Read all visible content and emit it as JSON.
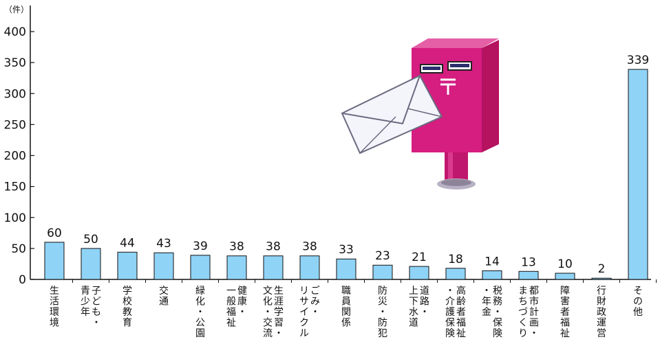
{
  "chart_data": {
    "type": "bar",
    "unit": "（件）",
    "ylim": [
      0,
      400
    ],
    "yticks": [
      0,
      50,
      100,
      150,
      200,
      250,
      300,
      350,
      400
    ],
    "grid": false,
    "bar_color": "#8fd3f7",
    "categories": [
      [
        "生活環境"
      ],
      [
        "子ども・",
        "青少年"
      ],
      [
        "学校教育"
      ],
      [
        "交通"
      ],
      [
        "緑化・公園"
      ],
      [
        "健康・",
        "一般福祉"
      ],
      [
        "生涯学習・",
        "文化・交流"
      ],
      [
        "ごみ・",
        "リサイクル"
      ],
      [
        "職員関係"
      ],
      [
        "防災・防犯"
      ],
      [
        "道路・",
        "上下水道"
      ],
      [
        "高齢者福祉",
        "・介護保険"
      ],
      [
        "税務・保険",
        "・年金"
      ],
      [
        "都市計画・",
        "まちづくり"
      ],
      [
        "障害者福祉"
      ],
      [
        "行財政運営"
      ],
      [
        "その他"
      ]
    ],
    "values": [
      60,
      50,
      44,
      43,
      39,
      38,
      38,
      38,
      33,
      23,
      21,
      18,
      14,
      13,
      10,
      2,
      339
    ]
  }
}
